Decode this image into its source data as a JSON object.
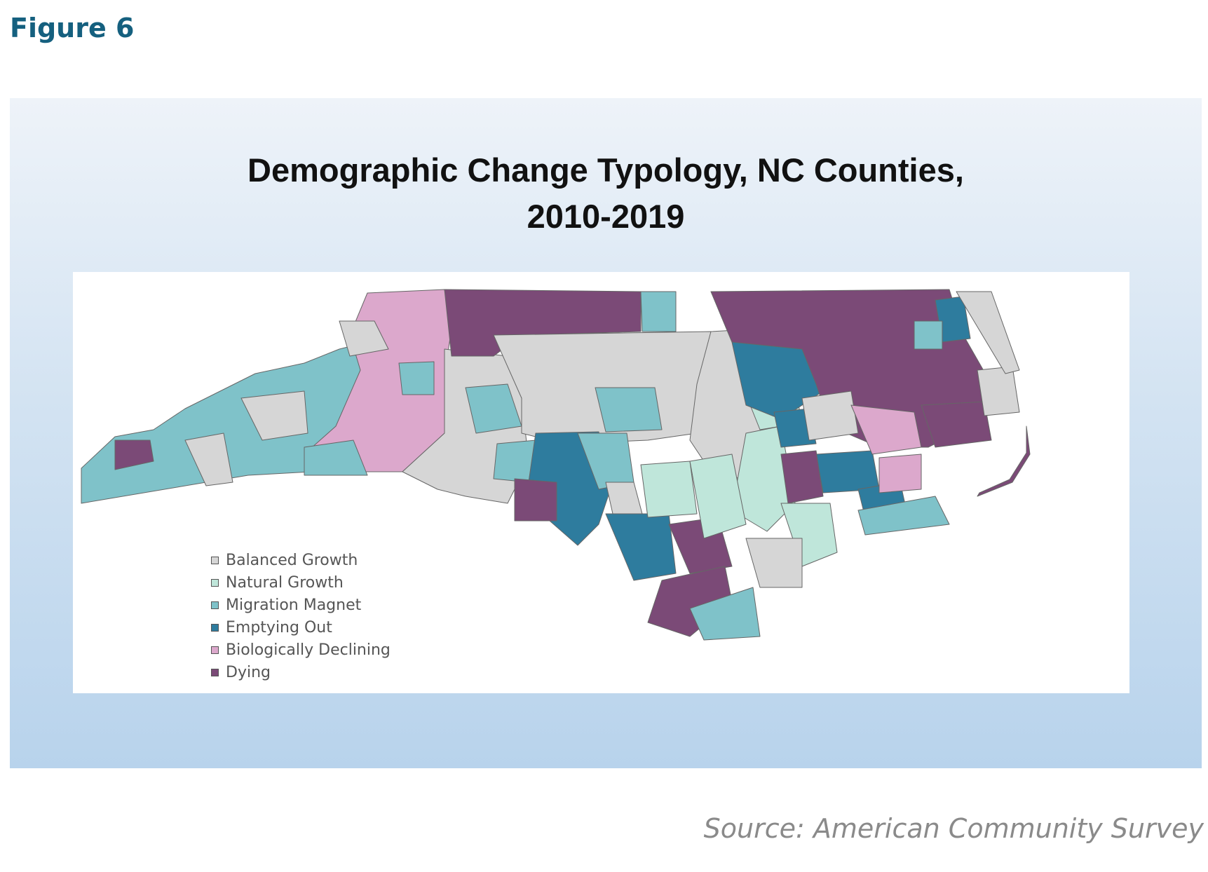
{
  "figure_label": "Figure 6",
  "map": {
    "title_line1": "Demographic Change Typology, NC Counties,",
    "title_line2": "2010-2019"
  },
  "legend": [
    {
      "label": "Balanced Growth",
      "color": "#d6d6d6"
    },
    {
      "label": "Natural Growth",
      "color": "#bfe6da"
    },
    {
      "label": "Migration Magnet",
      "color": "#7fc2c9"
    },
    {
      "label": "Emptying Out",
      "color": "#2e7c9e"
    },
    {
      "label": "Biologically Declining",
      "color": "#dca8cc"
    },
    {
      "label": "Dying",
      "color": "#7b4a77"
    }
  ],
  "source": "Source: American Community Survey"
}
